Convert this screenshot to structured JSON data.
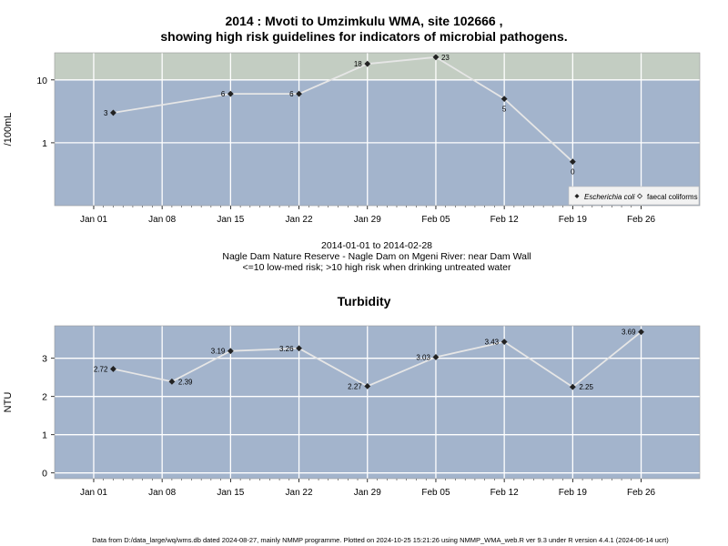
{
  "page": {
    "title_line1": "2014 : Mvoti to Umzimkulu WMA, site 102666 ,",
    "title_line2": "showing high risk guidelines for indicators of microbial pathogens.",
    "info_line1": "2014-01-01 to 2014-02-28",
    "info_line2": "Nagle Dam Nature Reserve - Nagle Dam on Mgeni River: near Dam Wall",
    "info_line3": "<=10 low-med risk; >10 high risk when drinking untreated water",
    "footer": "Data from D:/data_large/wq/wms.db dated 2024-08-27, mainly NMMP programme. Plotted on 2024-10-25 15:21:26 using NMMP_WMA_web.R ver 9.3 under R version 4.4.1 (2024-06-14 ucrt)"
  },
  "colors": {
    "panel_bg": "#a3b4cc",
    "high_risk_bg": "#c3cdc2",
    "grid": "#ffffff",
    "line": "#e6e6e6",
    "marker": "#222222"
  },
  "chart_data": [
    {
      "type": "line",
      "title": "",
      "ylabel": "/100mL",
      "yscale": "log",
      "ylim": [
        0.1,
        27
      ],
      "yticks": [
        1,
        10
      ],
      "ytick_labels": [
        "1",
        "10"
      ],
      "high_risk_threshold": 10,
      "xlim": [
        "2013-12-28",
        "2014-03-04"
      ],
      "xticks": [
        "2014-01-01",
        "2014-01-08",
        "2014-01-15",
        "2014-01-22",
        "2014-01-29",
        "2014-02-05",
        "2014-02-12",
        "2014-02-19",
        "2014-02-26"
      ],
      "xtick_labels": [
        "Jan 01",
        "Jan 08",
        "Jan 15",
        "Jan 22",
        "Jan 29",
        "Feb 05",
        "Feb 12",
        "Feb 19",
        "Feb 26"
      ],
      "legend_position": "bottom-right",
      "legend": [
        "Escherichia coli",
        "faecal coliforms"
      ],
      "series": [
        {
          "name": "Escherichia coli",
          "x": [
            "2014-01-03",
            "2014-01-15",
            "2014-01-22",
            "2014-01-29",
            "2014-02-05",
            "2014-02-12",
            "2014-02-19"
          ],
          "y": [
            3,
            6,
            6,
            18,
            23,
            5,
            0.5
          ],
          "labels": [
            "3",
            "6",
            "6",
            "18",
            "23",
            "5",
            "0"
          ]
        }
      ]
    },
    {
      "type": "line",
      "title": "Turbidity",
      "ylabel": "NTU",
      "ylim": [
        -0.15,
        3.85
      ],
      "yticks": [
        0,
        1,
        2,
        3
      ],
      "ytick_labels": [
        "0",
        "1",
        "2",
        "3"
      ],
      "xlim": [
        "2013-12-28",
        "2014-03-04"
      ],
      "xticks": [
        "2014-01-01",
        "2014-01-08",
        "2014-01-15",
        "2014-01-22",
        "2014-01-29",
        "2014-02-05",
        "2014-02-12",
        "2014-02-19",
        "2014-02-26"
      ],
      "xtick_labels": [
        "Jan 01",
        "Jan 08",
        "Jan 15",
        "Jan 22",
        "Jan 29",
        "Feb 05",
        "Feb 12",
        "Feb 19",
        "Feb 26"
      ],
      "series": [
        {
          "name": "",
          "x": [
            "2014-01-03",
            "2014-01-09",
            "2014-01-15",
            "2014-01-22",
            "2014-01-29",
            "2014-02-05",
            "2014-02-12",
            "2014-02-19",
            "2014-02-26"
          ],
          "y": [
            2.72,
            2.39,
            3.19,
            3.26,
            2.27,
            3.03,
            3.43,
            2.25,
            3.69
          ],
          "labels": [
            "2.72",
            "2.39",
            "3.19",
            "3.26",
            "2.27",
            "3.03",
            "3.43",
            "2.25",
            "3.69"
          ]
        }
      ]
    }
  ]
}
